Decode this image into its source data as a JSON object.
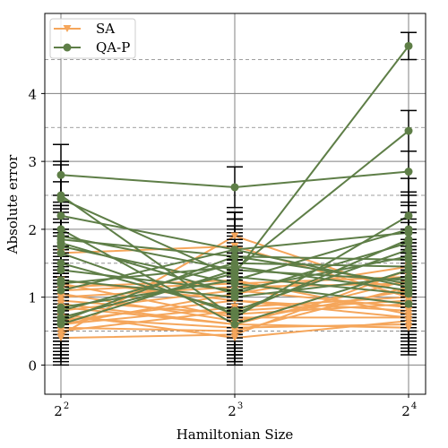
{
  "chart_data": {
    "type": "line",
    "xlabel": "Hamiltonian Size",
    "ylabel": "Absolute error",
    "x": [
      4,
      8,
      16
    ],
    "x_scale": "log2",
    "x_tick_labels": [
      {
        "base": "2",
        "exp": "2"
      },
      {
        "base": "2",
        "exp": "3"
      },
      {
        "base": "2",
        "exp": "4"
      }
    ],
    "y_ticks": [
      0,
      1,
      2,
      3,
      4
    ],
    "ylim": [
      -0.43,
      5.18
    ],
    "grid": {
      "major": "solid",
      "minor": "dashed"
    },
    "legend_position": "top-left",
    "series": [
      {
        "name": "SA",
        "color": "#f5a65b",
        "marker": "triangle-down",
        "runs": [
          [
            0.45,
            1.9,
            1.05
          ],
          [
            1.65,
            1.75,
            1.0
          ],
          [
            1.15,
            1.25,
            0.75
          ],
          [
            1.1,
            1.2,
            1.3
          ],
          [
            0.6,
            1.05,
            1.45
          ],
          [
            1.2,
            0.7,
            0.7
          ],
          [
            0.5,
            0.8,
            0.95
          ],
          [
            0.7,
            0.55,
            0.6
          ],
          [
            0.55,
            0.5,
            1.15
          ],
          [
            0.4,
            0.45,
            1.4
          ],
          [
            0.9,
            0.6,
            0.55
          ],
          [
            0.8,
            1.1,
            0.85
          ],
          [
            1.05,
            0.65,
            1.1
          ],
          [
            0.65,
            0.95,
            0.8
          ],
          [
            0.75,
            0.4,
            0.65
          ],
          [
            1.0,
            1.15,
            1.2
          ],
          [
            0.95,
            0.75,
            0.9
          ],
          [
            0.6,
            0.85,
            1.0
          ],
          [
            0.85,
            0.6,
            1.25
          ],
          [
            1.25,
            0.95,
            0.7
          ]
        ],
        "errors": [
          [
            0.4,
            0.35,
            0.4
          ],
          [
            0.45,
            0.4,
            0.4
          ],
          [
            0.4,
            0.4,
            0.35
          ],
          [
            0.4,
            0.35,
            0.4
          ],
          [
            0.4,
            0.35,
            0.4
          ],
          [
            0.4,
            0.4,
            0.4
          ],
          [
            0.4,
            0.4,
            0.4
          ],
          [
            0.4,
            0.4,
            0.4
          ],
          [
            0.4,
            0.4,
            0.4
          ],
          [
            0.4,
            0.4,
            0.4
          ],
          [
            0.4,
            0.4,
            0.4
          ],
          [
            0.4,
            0.4,
            0.4
          ],
          [
            0.4,
            0.4,
            0.4
          ],
          [
            0.4,
            0.4,
            0.4
          ],
          [
            0.4,
            0.4,
            0.4
          ],
          [
            0.4,
            0.4,
            0.4
          ],
          [
            0.4,
            0.4,
            0.4
          ],
          [
            0.4,
            0.4,
            0.4
          ],
          [
            0.4,
            0.4,
            0.4
          ],
          [
            0.4,
            0.4,
            0.4
          ]
        ]
      },
      {
        "name": "QA-P",
        "color": "#5e7e47",
        "marker": "circle",
        "runs": [
          [
            0.7,
            1.35,
            4.7
          ],
          [
            1.9,
            1.4,
            3.45
          ],
          [
            2.8,
            2.62,
            2.85
          ],
          [
            2.5,
            0.7,
            2.2
          ],
          [
            2.2,
            1.7,
            1.95
          ],
          [
            1.8,
            1.05,
            1.8
          ],
          [
            1.85,
            1.6,
            1.55
          ],
          [
            0.6,
            1.4,
            1.25
          ],
          [
            2.45,
            1.3,
            1.05
          ],
          [
            0.8,
            1.5,
            1.45
          ],
          [
            1.75,
            1.2,
            0.9
          ],
          [
            1.25,
            1.0,
            1.3
          ],
          [
            1.5,
            0.8,
            1.7
          ],
          [
            1.1,
            1.7,
            1.15
          ],
          [
            0.85,
            1.25,
            2.0
          ],
          [
            2.0,
            0.6,
            1.4
          ],
          [
            1.4,
            1.1,
            1.6
          ],
          [
            0.65,
            1.6,
            1.2
          ],
          [
            1.65,
            0.75,
            1.85
          ],
          [
            1.2,
            1.45,
            1.1
          ]
        ],
        "errors": [
          [
            0.5,
            0.55,
            0.2
          ],
          [
            0.5,
            0.55,
            0.3
          ],
          [
            0.45,
            0.3,
            0.3
          ],
          [
            0.5,
            0.55,
            0.55
          ],
          [
            0.5,
            0.55,
            0.55
          ],
          [
            0.5,
            0.55,
            0.55
          ],
          [
            0.5,
            0.55,
            0.55
          ],
          [
            0.5,
            0.55,
            0.55
          ],
          [
            0.5,
            0.55,
            0.55
          ],
          [
            0.5,
            0.55,
            0.55
          ],
          [
            0.5,
            0.55,
            0.55
          ],
          [
            0.5,
            0.55,
            0.55
          ],
          [
            0.5,
            0.55,
            0.55
          ],
          [
            0.5,
            0.55,
            0.55
          ],
          [
            0.5,
            0.55,
            0.55
          ],
          [
            0.5,
            0.55,
            0.55
          ],
          [
            0.5,
            0.55,
            0.55
          ],
          [
            0.5,
            0.55,
            0.55
          ],
          [
            0.5,
            0.55,
            0.55
          ],
          [
            0.5,
            0.55,
            0.55
          ]
        ]
      }
    ]
  }
}
